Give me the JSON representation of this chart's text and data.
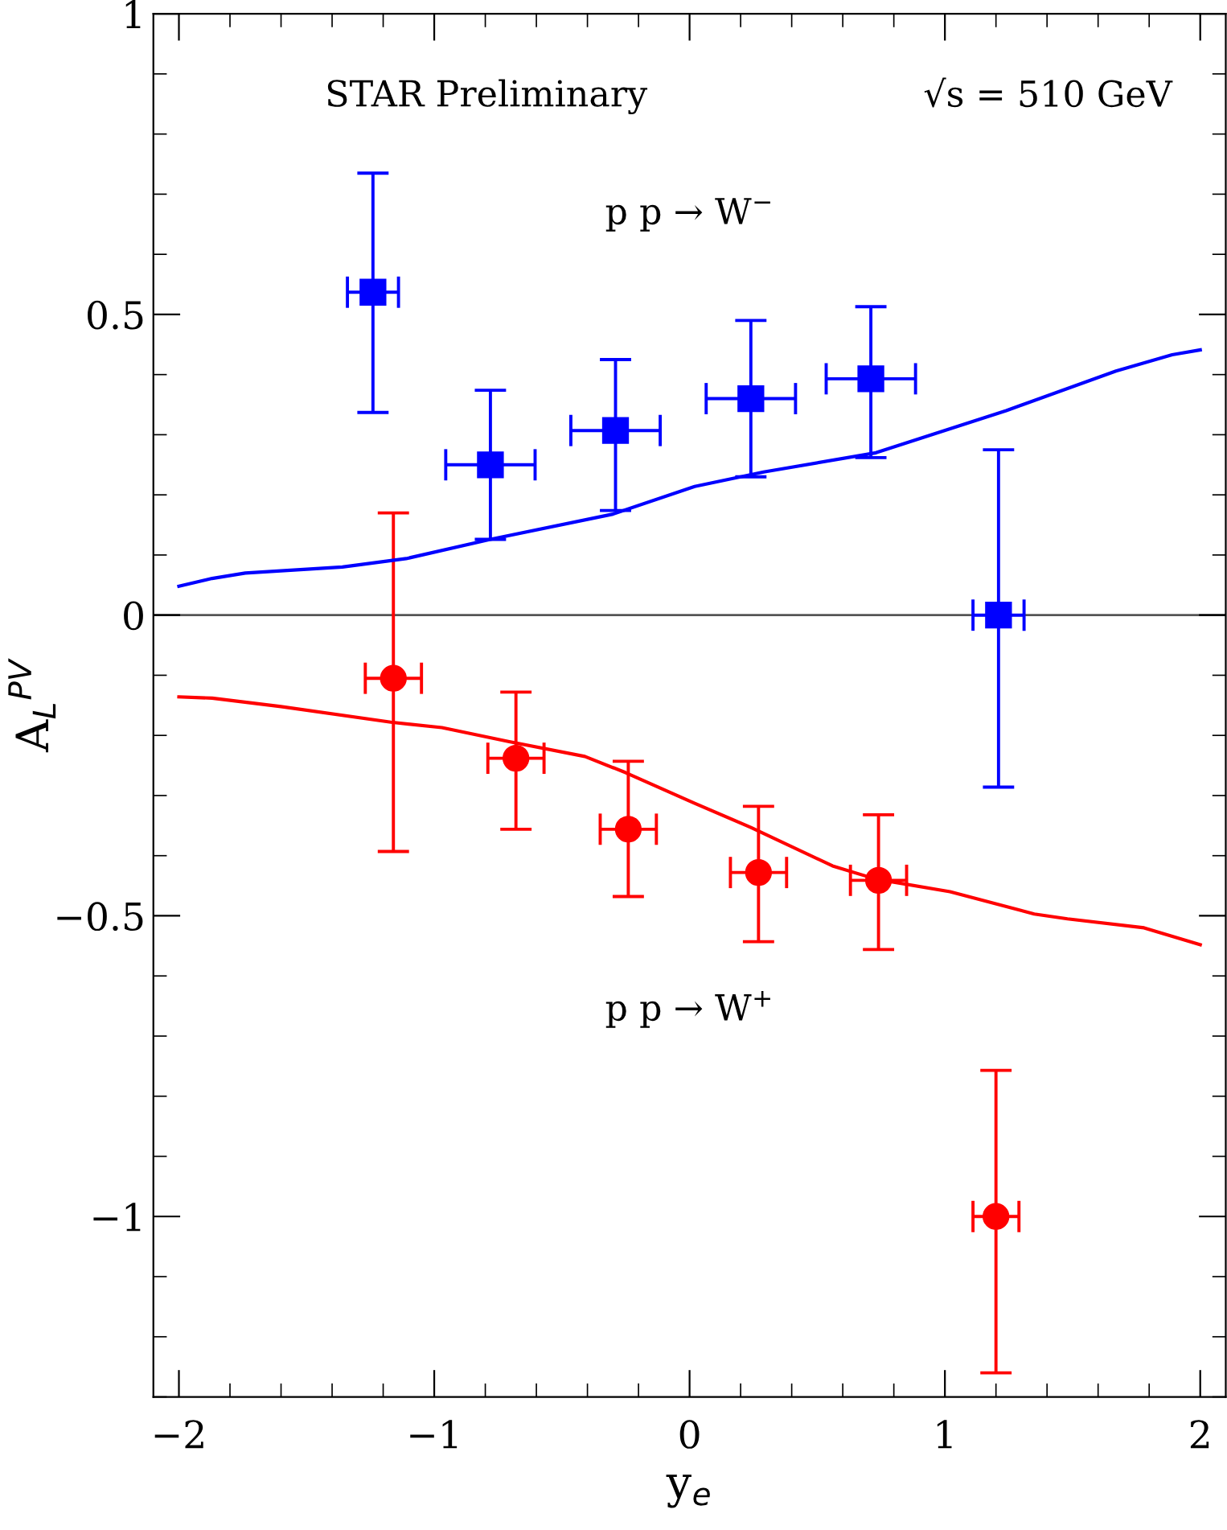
{
  "chart_data": {
    "type": "scatter",
    "xlabel": "y$_{e}$",
    "ylabel": "A$_{L}$$^{PV}$",
    "xlim": [
      -2.1,
      2.1
    ],
    "ylim": [
      -1.3,
      1
    ],
    "xticks": [
      {
        "value": -2,
        "label": "−2"
      },
      {
        "value": -1,
        "label": "−1"
      },
      0,
      1,
      2
    ],
    "yticks": [
      {
        "value": -1,
        "label": "−1"
      },
      {
        "value": -0.5,
        "label": "−0.5"
      },
      0,
      0.5,
      1
    ],
    "grid": false,
    "legend": false,
    "ref_lines": [
      {
        "axis": "y",
        "value": 0,
        "color": "#555555",
        "line_style": "solid"
      }
    ],
    "annotations": [
      {
        "text": "STAR Preliminary"
      },
      {
        "text": "√s = 510 GeV"
      },
      {
        "text": "p p → W$^{−}$"
      },
      {
        "text": "p p → W$^{+}$"
      }
    ],
    "series": [
      {
        "color": "#0000ff",
        "marker": "square",
        "x": [
          -1.24,
          -0.78,
          -0.29,
          0.24,
          0.71,
          1.21
        ],
        "values": [
          0.537,
          0.25,
          0.307,
          0.36,
          0.393,
          0
        ],
        "errors": [
          [
            0.337,
            0.735
          ],
          [
            0.126,
            0.374
          ],
          [
            0.174,
            0.425
          ],
          [
            0.23,
            0.49
          ],
          [
            0.262,
            0.513
          ],
          [
            -0.286,
            0.275
          ]
        ],
        "xerrors": [
          0.1,
          0.175,
          0.175,
          0.175,
          0.175,
          0.1
        ]
      },
      {
        "color": "#ff0000",
        "marker": "circle",
        "x": [
          -1.16,
          -0.68,
          -0.24,
          0.27,
          0.74,
          1.2
        ],
        "values": [
          -0.105,
          -0.238,
          -0.356,
          -0.428,
          -0.441,
          -1.0
        ],
        "errors": [
          [
            -0.393,
            0.17
          ],
          [
            -0.356,
            -0.128
          ],
          [
            -0.468,
            -0.243
          ],
          [
            -0.543,
            -0.318
          ],
          [
            -0.556,
            -0.332
          ],
          [
            -1.26,
            -0.757
          ]
        ],
        "xerrors": [
          0.11,
          0.11,
          0.11,
          0.11,
          0.11,
          0.09
        ]
      },
      {
        "type": "line",
        "color": "#0000ff",
        "line_style": "solid",
        "x": [
          -2,
          -1.87,
          -1.74,
          -1.36,
          -1.11,
          -0.78,
          -0.3,
          0.02,
          0.29,
          0.73,
          1.24,
          1.67,
          1.89,
          2
        ],
        "values": [
          0.048,
          0.061,
          0.07,
          0.08,
          0.094,
          0.126,
          0.168,
          0.214,
          0.238,
          0.27,
          0.34,
          0.406,
          0.433,
          0.441
        ]
      },
      {
        "type": "line",
        "color": "#ff0000",
        "line_style": "solid",
        "x": [
          -2,
          -1.87,
          -1.6,
          -1.17,
          -0.97,
          -0.71,
          -0.41,
          -0.25,
          0.02,
          0.24,
          0.56,
          0.73,
          1.02,
          1.35,
          1.48,
          1.78,
          2
        ],
        "values": [
          -0.136,
          -0.138,
          -0.152,
          -0.178,
          -0.187,
          -0.21,
          -0.235,
          -0.262,
          -0.313,
          -0.353,
          -0.417,
          -0.439,
          -0.46,
          -0.497,
          -0.505,
          -0.52,
          -0.548
        ]
      }
    ]
  }
}
